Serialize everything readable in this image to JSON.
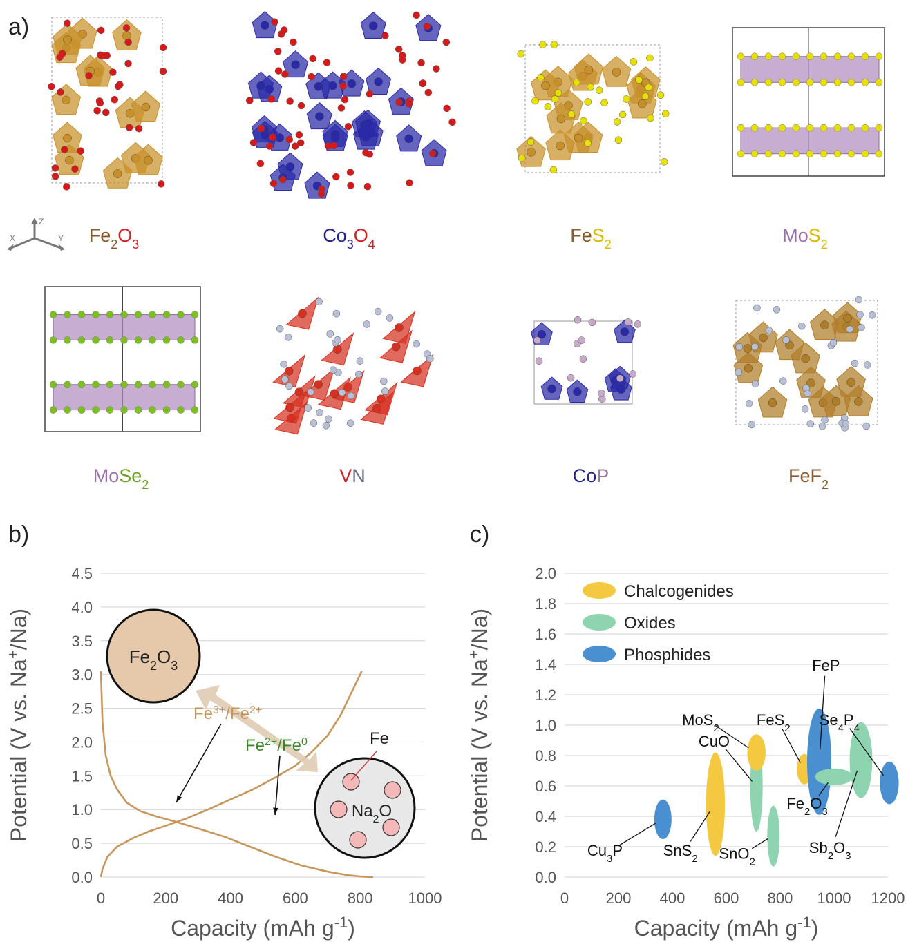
{
  "panel_labels": {
    "a": "a)",
    "b": "b)",
    "c": "c)"
  },
  "axes_triad": {
    "x": "X",
    "y": "Y",
    "z": "Z"
  },
  "structures": [
    {
      "formula": [
        [
          "Fe",
          "#8b5a2b",
          ""
        ],
        [
          "2",
          "#8b5a2b",
          "sub"
        ],
        [
          "O",
          "#d42020",
          ""
        ],
        [
          "3",
          "#d42020",
          "sub"
        ]
      ],
      "poly": "#c8902a",
      "atom": "#d61a1a",
      "style": "octa"
    },
    {
      "formula": [
        [
          "Co",
          "#22228a",
          ""
        ],
        [
          "3",
          "#22228a",
          "sub"
        ],
        [
          "O",
          "#d42020",
          ""
        ],
        [
          "4",
          "#d42020",
          "sub"
        ]
      ],
      "poly": "#2a2aa8",
      "atom": "#d61a1a",
      "style": "dense"
    },
    {
      "formula": [
        [
          "Fe",
          "#8b5a2b",
          ""
        ],
        [
          "S",
          "#e0b800",
          ""
        ],
        [
          "2",
          "#e0b800",
          "sub"
        ]
      ],
      "poly": "#c8902a",
      "atom": "#e8e000",
      "style": "octa"
    },
    {
      "formula": [
        [
          "Mo",
          "#9a70a8",
          ""
        ],
        [
          "S",
          "#e0b800",
          ""
        ],
        [
          "2",
          "#e0b800",
          "sub"
        ]
      ],
      "poly": "#b08ac0",
      "atom": "#e8e000",
      "style": "layer"
    },
    {
      "formula": [
        [
          "Mo",
          "#9a70a8",
          ""
        ],
        [
          "Se",
          "#6aa020",
          ""
        ],
        [
          "2",
          "#6aa020",
          "sub"
        ]
      ],
      "poly": "#b08ac0",
      "atom": "#7cc020",
      "style": "layer"
    },
    {
      "formula": [
        [
          "V",
          "#d42020",
          ""
        ],
        [
          "N",
          "#6a6a88",
          ""
        ]
      ],
      "poly": "#d63020",
      "atom": "#b8c0d8",
      "style": "tetra"
    },
    {
      "formula": [
        [
          "Co",
          "#22228a",
          ""
        ],
        [
          "P",
          "#9a7aa0",
          ""
        ]
      ],
      "poly": "#2a2aa8",
      "atom": "#c8a8c8",
      "style": "small"
    },
    {
      "formula": [
        [
          "Fe",
          "#8b5a2b",
          ""
        ],
        [
          "F",
          "#8b5a2b",
          ""
        ],
        [
          "2",
          "#8b5a2b",
          "sub"
        ]
      ],
      "poly": "#b07d28",
      "atom": "#b8c0d8",
      "style": "octa"
    }
  ],
  "chart_data": [
    {
      "type": "line",
      "panel": "b",
      "xlabel": "Capacity (mAh g",
      "xlabel_sup": "-1",
      "xlabel_close": ")",
      "ylabel": "Potential (V vs. Na",
      "ylabel_sup": "+",
      "ylabel_close": "/Na)",
      "xlim": [
        0,
        1000
      ],
      "ylim": [
        0,
        4.5
      ],
      "xticks": [
        "0",
        "200",
        "400",
        "600",
        "800",
        "1000"
      ],
      "yticks": [
        "0.0",
        "0.5",
        "1.0",
        "1.5",
        "2.0",
        "2.5",
        "3.0",
        "3.5",
        "4.0",
        "4.5"
      ],
      "grid": "horizontal",
      "line_color": "#c8965a",
      "series": [
        {
          "x": [
            0,
            5,
            15,
            30,
            50,
            80,
            120,
            170,
            230,
            300,
            380,
            460,
            540,
            620,
            700,
            760,
            800,
            830,
            840
          ],
          "y": [
            3.05,
            2.3,
            1.8,
            1.5,
            1.3,
            1.1,
            0.98,
            0.9,
            0.82,
            0.72,
            0.6,
            0.45,
            0.3,
            0.17,
            0.08,
            0.03,
            0.01,
            0.0,
            0.0
          ]
        },
        {
          "x": [
            0,
            5,
            20,
            50,
            100,
            150,
            200,
            260,
            330,
            400,
            470,
            540,
            600,
            650,
            700,
            740,
            770,
            795,
            805
          ],
          "y": [
            0.0,
            0.12,
            0.3,
            0.45,
            0.58,
            0.68,
            0.76,
            0.86,
            1.0,
            1.15,
            1.3,
            1.48,
            1.65,
            1.85,
            2.1,
            2.4,
            2.7,
            2.95,
            3.05
          ]
        }
      ],
      "annotations": {
        "fe2o3": [
          [
            "Fe",
            ""
          ],
          [
            "2",
            "sub"
          ],
          [
            "O",
            ""
          ],
          [
            "3",
            "sub"
          ]
        ],
        "couple1": [
          [
            "Fe",
            ""
          ],
          [
            "3+",
            "sup"
          ],
          [
            "/Fe",
            ""
          ],
          [
            "2+",
            "sup"
          ]
        ],
        "couple1_color": "#c8965a",
        "couple2": [
          [
            "Fe",
            ""
          ],
          [
            "2+",
            "sup"
          ],
          [
            "/Fe",
            ""
          ],
          [
            "0",
            "sup"
          ]
        ],
        "couple2_color": "#3a8a2a",
        "na2o": [
          [
            "Na",
            ""
          ],
          [
            "2",
            "sub"
          ],
          [
            "O",
            ""
          ]
        ],
        "fe": "Fe"
      }
    },
    {
      "type": "scatter",
      "panel": "c",
      "xlabel": "Capacity (mAh g",
      "xlabel_sup": "-1",
      "xlabel_close": ")",
      "ylabel": "Potential (V vs. Na",
      "ylabel_sup": "+",
      "ylabel_close": "/Na)",
      "xlim": [
        0,
        1200
      ],
      "ylim": [
        0,
        2.0
      ],
      "xticks": [
        "0",
        "200",
        "400",
        "600",
        "800",
        "1000",
        "1200"
      ],
      "yticks": [
        "0.0",
        "0.2",
        "0.4",
        "0.6",
        "0.8",
        "1.0",
        "1.2",
        "1.4",
        "1.6",
        "1.8",
        "2.0"
      ],
      "grid": "horizontal",
      "legend": "top-left",
      "series": [
        {
          "name": "Chalcogenides",
          "color": "#f5c842"
        },
        {
          "name": "Oxides",
          "color": "#8fd4b0"
        },
        {
          "name": "Phosphides",
          "color": "#4a8fd0"
        }
      ],
      "points": [
        {
          "label": [
            [
              "Cu",
              ""
            ],
            [
              "3",
              "sub"
            ],
            [
              "P",
              ""
            ]
          ],
          "series": "Phosphides",
          "x": 365,
          "y": 0.38,
          "rx": 32,
          "ry": 0.13,
          "label_x": 150,
          "label_y": 0.14
        },
        {
          "label": [
            [
              "SnS",
              ""
            ],
            [
              "2",
              "sub"
            ]
          ],
          "series": "Chalcogenides",
          "x": 560,
          "y": 0.48,
          "rx": 35,
          "ry": 0.34,
          "label_x": 430,
          "label_y": 0.14
        },
        {
          "label": [
            [
              "SnO",
              ""
            ],
            [
              "2",
              "sub"
            ]
          ],
          "series": "Oxides",
          "x": 775,
          "y": 0.27,
          "rx": 23,
          "ry": 0.2,
          "label_x": 640,
          "label_y": 0.12
        },
        {
          "label": [
            [
              "CuO",
              ""
            ]
          ],
          "series": "Oxides",
          "x": 712,
          "y": 0.6,
          "rx": 23,
          "ry": 0.3,
          "label_x": 555,
          "label_y": 0.86
        },
        {
          "label": [
            [
              "MoS",
              ""
            ],
            [
              "2",
              "sub"
            ]
          ],
          "series": "Chalcogenides",
          "x": 712,
          "y": 0.82,
          "rx": 34,
          "ry": 0.12,
          "label_x": 505,
          "label_y": 1.0
        },
        {
          "label": [
            [
              "FeS",
              ""
            ],
            [
              "2",
              "sub"
            ]
          ],
          "series": "Chalcogenides",
          "x": 890,
          "y": 0.71,
          "rx": 28,
          "ry": 0.1,
          "label_x": 775,
          "label_y": 1.0
        },
        {
          "label": [
            [
              "FeP",
              ""
            ]
          ],
          "series": "Phosphides",
          "x": 945,
          "y": 0.76,
          "rx": 45,
          "ry": 0.35,
          "label_x": 970,
          "label_y": 1.36
        },
        {
          "label": [
            [
              "Fe",
              ""
            ],
            [
              "2",
              "sub"
            ],
            [
              "O",
              ""
            ],
            [
              "3",
              "sub"
            ]
          ],
          "series": "Oxides",
          "x": 1000,
          "y": 0.66,
          "rx": 70,
          "ry": 0.055,
          "label_x": 900,
          "label_y": 0.45
        },
        {
          "label": [
            [
              "Sb",
              ""
            ],
            [
              "2",
              "sub"
            ],
            [
              "O",
              ""
            ],
            [
              "3",
              "sub"
            ]
          ],
          "series": "Oxides",
          "x": 1100,
          "y": 0.77,
          "rx": 42,
          "ry": 0.25,
          "label_x": 985,
          "label_y": 0.16
        },
        {
          "label": [
            [
              "Se",
              ""
            ],
            [
              "4",
              "sub"
            ],
            [
              "P",
              ""
            ],
            [
              "4",
              "sub"
            ]
          ],
          "series": "Phosphides",
          "x": 1205,
          "y": 0.62,
          "rx": 35,
          "ry": 0.14,
          "label_x": 1020,
          "label_y": 1.0
        }
      ]
    }
  ]
}
